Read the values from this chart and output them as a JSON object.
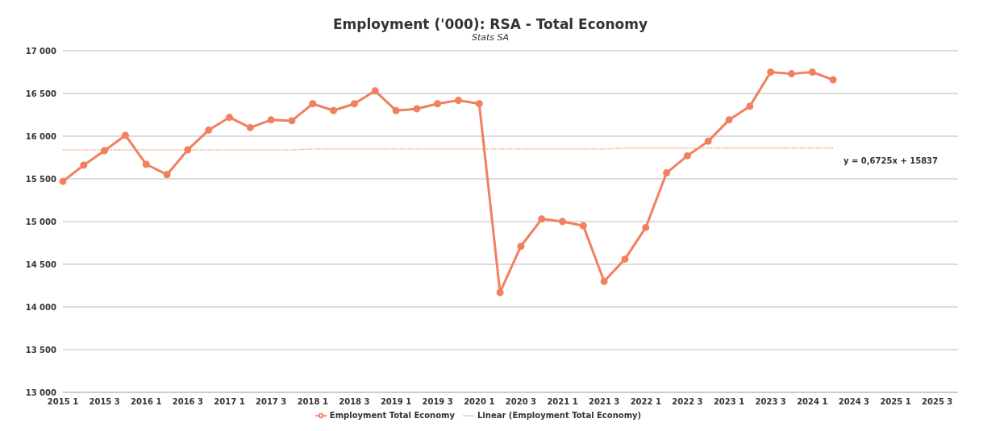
{
  "chart_data": {
    "type": "line",
    "title": "Employment ('000): RSA - Total Economy",
    "subtitle": "Stats SA",
    "categories": [
      "2015 1",
      null,
      "2015 3",
      null,
      "2016 1",
      null,
      "2016 3",
      null,
      "2017 1",
      null,
      "2017 3",
      null,
      "2018 1",
      null,
      "2018 3",
      null,
      "2019 1",
      null,
      "2019 3",
      null,
      "2020 1",
      null,
      "2020 3",
      null,
      "2021 1",
      null,
      "2021 3",
      null,
      "2022 1",
      null,
      "2022 3",
      null,
      "2023 1",
      null,
      "2023 3",
      null,
      "2024 1",
      null,
      "2024 3",
      null,
      "2025 1",
      null,
      "2025 3",
      null
    ],
    "series": [
      {
        "name": "Employment Total Economy",
        "color": "#f08060",
        "marker": "circle",
        "line_style": "solid",
        "values": [
          15470,
          15660,
          15830,
          16010,
          15670,
          15550,
          15840,
          16070,
          16220,
          16100,
          16190,
          16180,
          16380,
          16300,
          16380,
          16530,
          16300,
          16320,
          16380,
          16420,
          16380,
          14170,
          14710,
          15030,
          15000,
          14950,
          14300,
          14560,
          14930,
          15570,
          15770,
          15940,
          16190,
          16350,
          16750,
          16730,
          16750,
          16660,
          null,
          null,
          null,
          null,
          null,
          null
        ]
      },
      {
        "name": "Linear (Employment Total Economy)",
        "color": "#f4a070",
        "marker": "none",
        "line_style": "dotted",
        "values": [
          15840,
          15840,
          15840,
          15840,
          15840,
          15840,
          15840,
          15840,
          15840,
          15840,
          15840,
          15840,
          15850,
          15850,
          15850,
          15850,
          15850,
          15850,
          15850,
          15850,
          15850,
          15850,
          15850,
          15850,
          15850,
          15850,
          15850,
          15860,
          15860,
          15860,
          15860,
          15860,
          15860,
          15860,
          15860,
          15860,
          15860,
          15860,
          null,
          null,
          null,
          null,
          null,
          null
        ]
      }
    ],
    "annotations": [
      "y = 0,6725x + 15837"
    ],
    "ylim": [
      13000,
      17000
    ],
    "yticks": [
      {
        "value": 13000,
        "label": "13 000"
      },
      {
        "value": 13500,
        "label": "13 500"
      },
      {
        "value": 14000,
        "label": "14 000"
      },
      {
        "value": 14500,
        "label": "14 500"
      },
      {
        "value": 15000,
        "label": "15 000"
      },
      {
        "value": 15500,
        "label": "15 500"
      },
      {
        "value": 16000,
        "label": "16 000"
      },
      {
        "value": 16500,
        "label": "16 500"
      },
      {
        "value": 17000,
        "label": "17 000"
      }
    ],
    "grid": "y",
    "legend": "bottom"
  }
}
